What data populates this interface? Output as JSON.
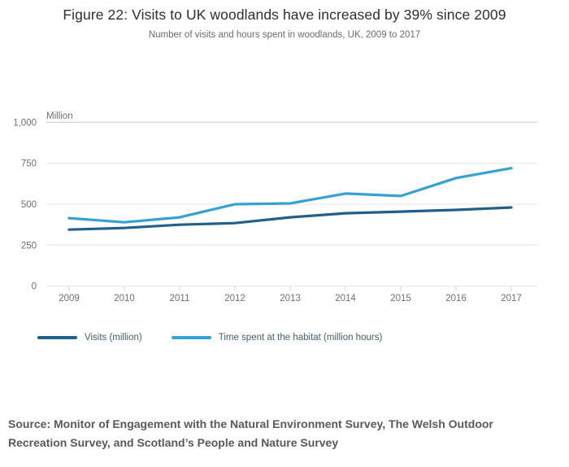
{
  "header": {
    "title": "Figure 22: Visits to UK woodlands have increased by 39% since 2009",
    "subtitle": "Number of visits and hours spent in woodlands, UK, 2009 to 2017"
  },
  "chart_data": {
    "type": "line",
    "title": "Figure 22: Visits to UK woodlands have increased by 39% since 2009",
    "subtitle": "Number of visits and hours spent in woodlands, UK, 2009 to 2017",
    "unit_label": "Million",
    "x": [
      "2009",
      "2010",
      "2011",
      "2012",
      "2013",
      "2014",
      "2015",
      "2016",
      "2017"
    ],
    "series": [
      {
        "name": "Visits (million)",
        "color": "#21608c",
        "values": [
          345,
          355,
          375,
          385,
          420,
          445,
          455,
          465,
          480
        ]
      },
      {
        "name": "Time spent at the habitat (million hours)",
        "color": "#33a3d4",
        "values": [
          415,
          390,
          420,
          500,
          505,
          565,
          550,
          660,
          720
        ]
      }
    ],
    "ylim": [
      0,
      1000
    ],
    "yticks": [
      0,
      250,
      500,
      750,
      1000
    ],
    "ytick_labels": [
      "0",
      "250",
      "500",
      "750",
      "1,000"
    ],
    "xlabel": "",
    "ylabel": "Million",
    "grid": true,
    "legend_position": "bottom"
  },
  "footer": {
    "source": "Source: Monitor of Engagement with the Natural Environment Survey, The Welsh Outdoor Recreation Survey, and Scotland’s People and Nature Survey"
  },
  "colors": {
    "visits_line": "#21608c",
    "time_line": "#33a3d4",
    "gridline": "#e3e3e3",
    "gridline_top": "#c9c9c9",
    "tick": "#c9d4dc",
    "axis_text": "#707070",
    "legend_text": "#42606d",
    "source_text": "#595959"
  }
}
